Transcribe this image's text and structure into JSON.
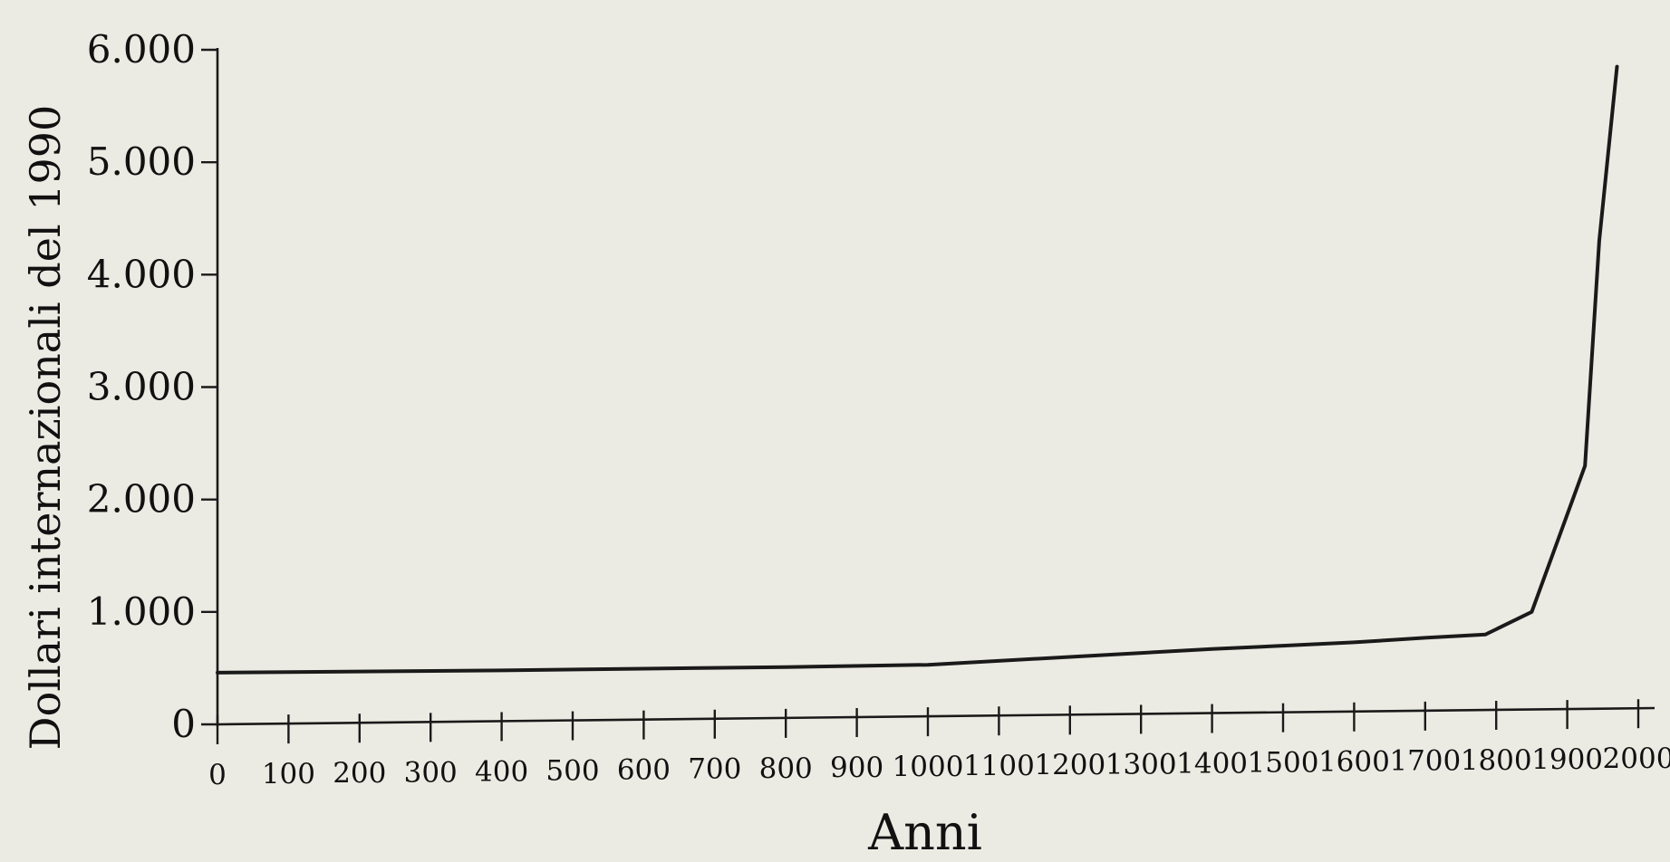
{
  "chart_data": {
    "type": "line",
    "title": "",
    "xlabel": "Anni",
    "ylabel": "Dollari internazionali del 1990",
    "xlim": [
      0,
      2000
    ],
    "ylim": [
      0,
      6000
    ],
    "grid": false,
    "x_ticks": [
      0,
      100,
      200,
      300,
      400,
      500,
      600,
      700,
      800,
      900,
      1000,
      1100,
      1200,
      1300,
      1400,
      1500,
      1600,
      1700,
      1800,
      1900,
      2000
    ],
    "x_tick_labels": [
      "0",
      "100",
      "200",
      "300",
      "400",
      "500",
      "600",
      "700",
      "800",
      "900",
      "1000",
      "1100",
      "1200",
      "1300",
      "1400",
      "1500",
      "1600",
      "1700",
      "1800",
      "1900",
      "2000"
    ],
    "y_ticks": [
      0,
      1000,
      2000,
      3000,
      4000,
      5000,
      6000
    ],
    "y_tick_labels": [
      "0",
      "1.000",
      "2.000",
      "3.000",
      "4.000",
      "5.000",
      "6.000"
    ],
    "series": [
      {
        "x": [
          0,
          200,
          400,
          600,
          800,
          1000,
          1200,
          1400,
          1500,
          1600,
          1700,
          1785,
          1850,
          1925,
          1945,
          1970
        ],
        "y": [
          460,
          470,
          480,
          495,
          510,
          530,
          600,
          670,
          700,
          730,
          770,
          800,
          1000,
          2300,
          4300,
          5850
        ]
      }
    ]
  }
}
